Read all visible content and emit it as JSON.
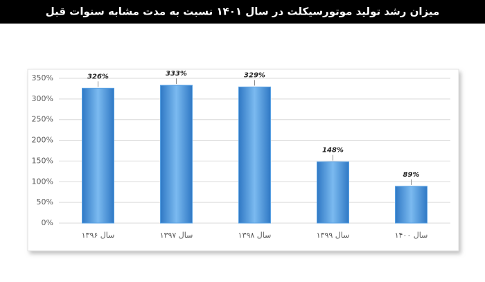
{
  "chart_data": {
    "type": "bar",
    "title": "میزان رشد تولید موتورسیکلت در سال ۱۴۰۱ نسبت به مدت مشابه سنوات قبل",
    "categories": [
      "سال ۱۳۹۶",
      "سال ۱۳۹۷",
      "سال ۱۳۹۸",
      "سال ۱۳۹۹",
      "سال ۱۴۰۰"
    ],
    "values": [
      326,
      333,
      329,
      148,
      89
    ],
    "value_labels": [
      "326%",
      "333%",
      "329%",
      "148%",
      "89%"
    ],
    "color": "#5aa2e4",
    "ylim": [
      0,
      350
    ],
    "yticks": [
      {
        "value": 0,
        "label": "0%"
      },
      {
        "value": 50,
        "label": "50%"
      },
      {
        "value": 100,
        "label": "100%"
      },
      {
        "value": 150,
        "label": "150%"
      },
      {
        "value": 200,
        "label": "200%"
      },
      {
        "value": 250,
        "label": "250%"
      },
      {
        "value": 300,
        "label": "300%"
      },
      {
        "value": 350,
        "label": "350%"
      }
    ],
    "grid": true
  }
}
